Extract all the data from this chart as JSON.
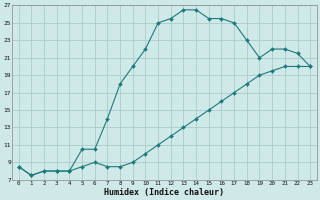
{
  "xlabel": "Humidex (Indice chaleur)",
  "background_color": "#cfe8e8",
  "grid_color": "#aacccc",
  "line_color": "#1e7b7b",
  "curve1_x": [
    0,
    1,
    2,
    3,
    4,
    5,
    6,
    7,
    8,
    9,
    10,
    11,
    12,
    13,
    14,
    15,
    16,
    17,
    18,
    19,
    20,
    21,
    22,
    23
  ],
  "curve1_y": [
    8.5,
    7.5,
    8.0,
    8.0,
    8.0,
    10.5,
    10.5,
    14.0,
    18.0,
    20.0,
    22.0,
    25.0,
    25.5,
    26.5,
    26.5,
    25.5,
    25.5,
    25.0,
    23.0,
    21.0,
    22.0,
    22.0,
    21.5,
    20.0
  ],
  "curve2_x": [
    0,
    1,
    2,
    3,
    4,
    5,
    6,
    7,
    8,
    9,
    10,
    11,
    12,
    13,
    14,
    15,
    16,
    17,
    18,
    19,
    20,
    21,
    22,
    23
  ],
  "curve2_y": [
    8.5,
    7.5,
    8.0,
    8.0,
    8.0,
    8.5,
    9.0,
    8.5,
    8.5,
    9.0,
    10.0,
    11.0,
    12.0,
    13.0,
    14.0,
    15.0,
    16.0,
    17.0,
    18.0,
    19.0,
    19.5,
    20.0,
    20.0,
    20.0
  ],
  "xlim": [
    -0.5,
    23.5
  ],
  "ylim": [
    7,
    27
  ],
  "yticks": [
    7,
    9,
    11,
    13,
    15,
    17,
    19,
    21,
    23,
    25,
    27
  ],
  "xticks": [
    0,
    1,
    2,
    3,
    4,
    5,
    6,
    7,
    8,
    9,
    10,
    11,
    12,
    13,
    14,
    15,
    16,
    17,
    18,
    19,
    20,
    21,
    22,
    23
  ]
}
